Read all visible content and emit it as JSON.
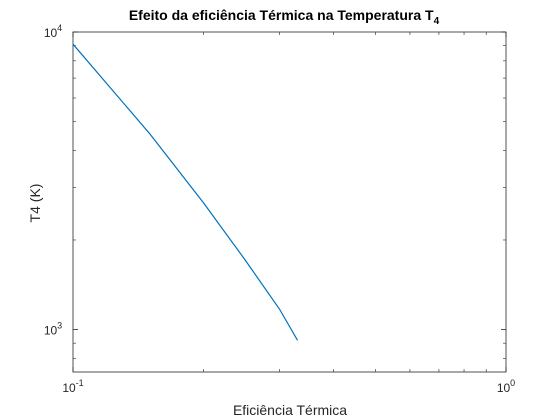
{
  "chart_data": {
    "type": "line",
    "title": "Efeito da eficiência Térmica na Temperatura T",
    "title_subscript": "4",
    "xlabel": "Eficiência Térmica",
    "ylabel": "T4 (K)",
    "xscale": "log",
    "yscale": "log",
    "xlim": [
      0.1,
      1
    ],
    "ylim": [
      720,
      10000
    ],
    "grid": false,
    "x_ticks": [
      {
        "mantissa": "10",
        "exp": "-1",
        "value": 0.1
      },
      {
        "mantissa": "10",
        "exp": "0",
        "value": 1
      }
    ],
    "y_ticks": [
      {
        "mantissa": "10",
        "exp": "3",
        "value": 1000
      },
      {
        "mantissa": "10",
        "exp": "4",
        "value": 10000
      }
    ],
    "series": [
      {
        "color": "#0072BD",
        "x": [
          0.1,
          0.15,
          0.2,
          0.25,
          0.3,
          0.33
        ],
        "y": [
          9100,
          4570,
          2670,
          1710,
          1170,
          920
        ]
      }
    ]
  }
}
